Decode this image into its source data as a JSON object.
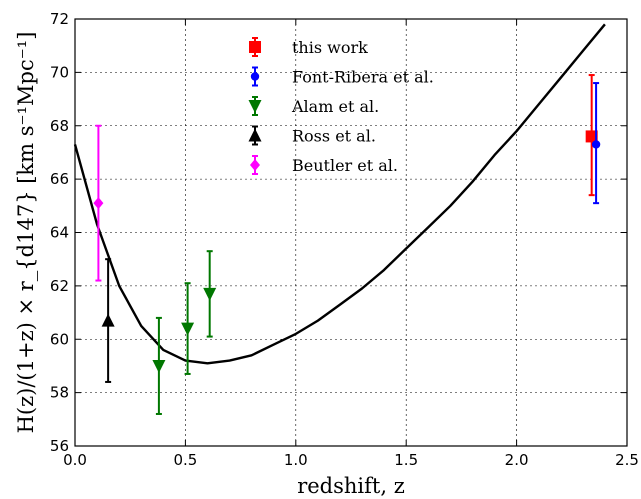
{
  "chart_data": {
    "type": "scatter",
    "xlabel": "redshift, z",
    "ylabel": "H(z)/(1+z) × r_{d147} [km s⁻¹Mpc⁻¹]",
    "xlim": [
      0.0,
      2.5
    ],
    "ylim": [
      56,
      72
    ],
    "xticks": [
      0.0,
      0.5,
      1.0,
      1.5,
      2.0,
      2.5
    ],
    "xtick_labels": [
      "0.0",
      "0.5",
      "1.0",
      "1.5",
      "2.0",
      "2.5"
    ],
    "yticks": [
      56,
      58,
      60,
      62,
      64,
      66,
      68,
      70,
      72
    ],
    "ytick_labels": [
      "56",
      "58",
      "60",
      "62",
      "64",
      "66",
      "68",
      "70",
      "72"
    ],
    "grid": true,
    "legend_position": "top-center",
    "model_curve": {
      "color": "#000000",
      "x": [
        0.0,
        0.1,
        0.2,
        0.3,
        0.4,
        0.5,
        0.6,
        0.7,
        0.8,
        0.9,
        1.0,
        1.1,
        1.2,
        1.3,
        1.4,
        1.5,
        1.6,
        1.7,
        1.8,
        1.9,
        2.0,
        2.1,
        2.2,
        2.3,
        2.4
      ],
      "y": [
        67.3,
        64.3,
        62.0,
        60.5,
        59.6,
        59.2,
        59.1,
        59.2,
        59.4,
        59.8,
        60.2,
        60.7,
        61.3,
        61.9,
        62.6,
        63.4,
        64.2,
        65.0,
        65.9,
        66.9,
        67.8,
        68.8,
        69.8,
        70.8,
        71.8
      ]
    },
    "series": [
      {
        "name": "this work",
        "marker": "square",
        "color": "#ff0000",
        "points": [
          {
            "x": 2.34,
            "y": 67.6,
            "yerr_low": 2.2,
            "yerr_high": 2.3
          }
        ]
      },
      {
        "name": "Font-Ribera et al.",
        "marker": "circle",
        "color": "#0000ff",
        "points": [
          {
            "x": 2.36,
            "y": 67.3,
            "yerr_low": 2.2,
            "yerr_high": 2.3
          }
        ]
      },
      {
        "name": "Alam et al.",
        "marker": "triangle-down",
        "color": "#007700",
        "points": [
          {
            "x": 0.38,
            "y": 59.0,
            "yerr_low": 1.8,
            "yerr_high": 1.8
          },
          {
            "x": 0.51,
            "y": 60.4,
            "yerr_low": 1.7,
            "yerr_high": 1.7
          },
          {
            "x": 0.61,
            "y": 61.7,
            "yerr_low": 1.6,
            "yerr_high": 1.6
          }
        ]
      },
      {
        "name": "Ross et al.",
        "marker": "triangle-up",
        "color": "#000000",
        "points": [
          {
            "x": 0.15,
            "y": 60.7,
            "yerr_low": 2.3,
            "yerr_high": 2.3
          }
        ]
      },
      {
        "name": "Beutler et al.",
        "marker": "diamond",
        "color": "#ff00ff",
        "points": [
          {
            "x": 0.106,
            "y": 65.1,
            "yerr_low": 2.9,
            "yerr_high": 2.9
          }
        ]
      }
    ]
  }
}
